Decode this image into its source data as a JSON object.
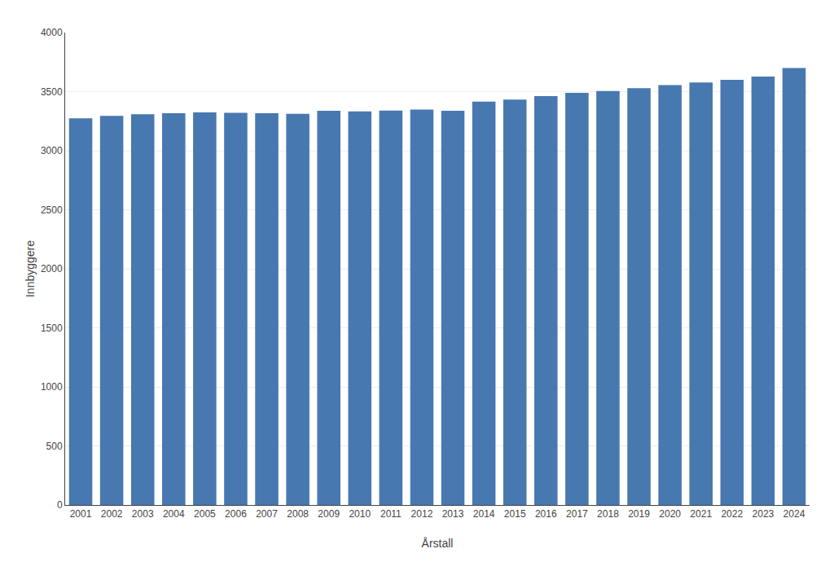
{
  "chart_data": {
    "type": "bar",
    "xlabel": "Årstall",
    "ylabel": "Innbyggere",
    "categories": [
      "2001",
      "2002",
      "2003",
      "2004",
      "2005",
      "2006",
      "2007",
      "2008",
      "2009",
      "2010",
      "2011",
      "2012",
      "2013",
      "2014",
      "2015",
      "2016",
      "2017",
      "2018",
      "2019",
      "2020",
      "2021",
      "2022",
      "2023",
      "2024"
    ],
    "values": [
      3275,
      3295,
      3308,
      3318,
      3325,
      3320,
      3318,
      3312,
      3338,
      3333,
      3340,
      3348,
      3338,
      3415,
      3432,
      3462,
      3490,
      3505,
      3530,
      3555,
      3578,
      3600,
      3628,
      3700
    ],
    "color": "#4878B0",
    "ylim": [
      0,
      4000
    ],
    "yticks": [
      0,
      500,
      1000,
      1500,
      2000,
      2500,
      3000,
      3500,
      4000
    ],
    "grid": true
  }
}
